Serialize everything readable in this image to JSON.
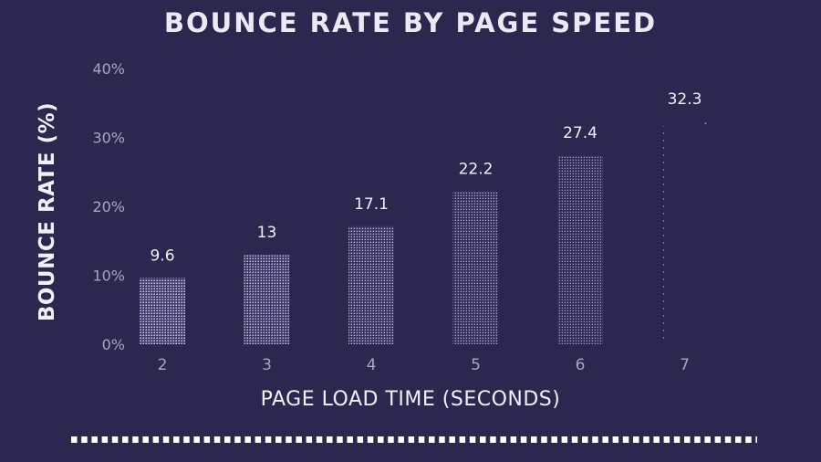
{
  "chart_data": {
    "type": "bar",
    "title": "BOUNCE RATE BY PAGE SPEED",
    "xlabel": "PAGE LOAD TIME (SECONDS)",
    "ylabel": "BOUNCE RATE (%)",
    "categories": [
      "2",
      "3",
      "4",
      "5",
      "6",
      "7"
    ],
    "values": [
      9.6,
      13,
      17.1,
      22.2,
      27.4,
      32.3
    ],
    "data_labels": [
      "9.6",
      "13",
      "17.1",
      "22.2",
      "27.4",
      "32.3"
    ],
    "yticks": [
      "0%",
      "10%",
      "20%",
      "30%",
      "40%"
    ],
    "ylim": [
      0,
      40
    ],
    "grid": false,
    "legend": "none"
  },
  "colors": {
    "background": "#2b2850",
    "bar_base": "#3a3766",
    "bar_dots": "#d9d5ea",
    "text": "#f1eff7",
    "tick_text": "#a8a4c4",
    "divider": "#ffffff"
  }
}
